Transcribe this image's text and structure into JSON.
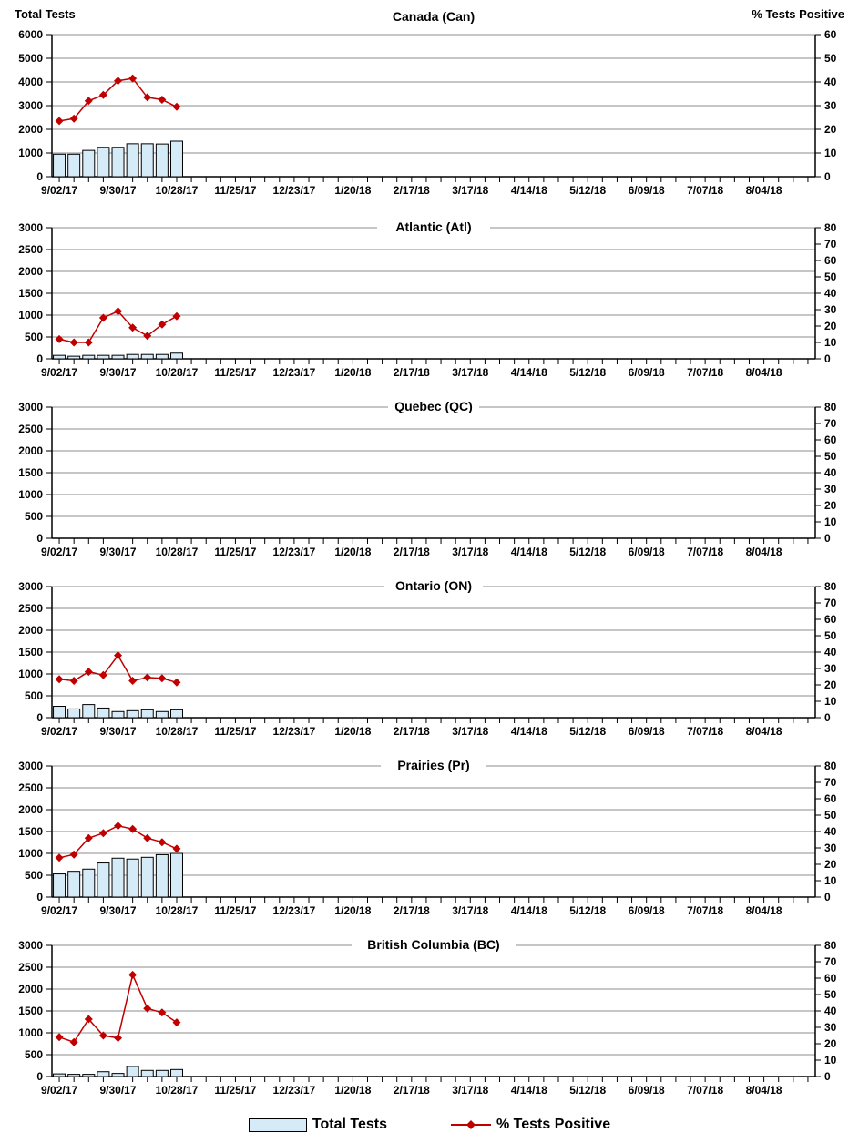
{
  "page": {
    "left_axis_title": "Total Tests",
    "right_axis_title": "% Tests Positive",
    "legend": {
      "bar_label": "Total Tests",
      "line_label": "% Tests Positive"
    },
    "colors": {
      "bar_fill": "#D6EBF8",
      "bar_border": "#000000",
      "line": "#C00000",
      "grid": "#8C8C8C",
      "axis": "#000000",
      "text": "#000000"
    }
  },
  "x_axis": {
    "tick_labels": [
      "9/02/17",
      "9/30/17",
      "10/28/17",
      "11/25/17",
      "12/23/17",
      "1/20/18",
      "2/17/18",
      "3/17/18",
      "4/14/18",
      "5/12/18",
      "6/09/18",
      "7/07/18",
      "8/04/18"
    ],
    "weeks_total": 52,
    "label_every": 4,
    "data_week_dates": [
      "9/02/17",
      "9/09/17",
      "9/16/17",
      "9/23/17",
      "9/30/17",
      "10/07/17",
      "10/14/17",
      "10/21/17",
      "10/28/17"
    ]
  },
  "chart_data": [
    {
      "type": "bar+line",
      "title": "Canada (Can)",
      "show_corner_titles": true,
      "left_axis": {
        "label": "Total Tests",
        "min": 0,
        "max": 6000,
        "step": 1000
      },
      "right_axis": {
        "label": "% Tests Positive",
        "min": 0,
        "max": 60,
        "step": 10
      },
      "series": [
        {
          "name": "Total Tests",
          "axis": "left",
          "type": "bar",
          "values": [
            950,
            950,
            1110,
            1240,
            1240,
            1390,
            1390,
            1380,
            1500
          ]
        },
        {
          "name": "% Tests Positive",
          "axis": "right",
          "type": "line",
          "values": [
            23.5,
            24.5,
            32,
            34.5,
            40.5,
            41.5,
            33.5,
            32.5,
            29.5
          ]
        }
      ]
    },
    {
      "type": "bar+line",
      "title": "Atlantic (Atl)",
      "show_corner_titles": false,
      "left_axis": {
        "label": "Total Tests",
        "min": 0,
        "max": 3000,
        "step": 500
      },
      "right_axis": {
        "label": "% Tests Positive",
        "min": 0,
        "max": 80,
        "step": 10
      },
      "series": [
        {
          "name": "Total Tests",
          "axis": "left",
          "type": "bar",
          "values": [
            80,
            60,
            80,
            80,
            80,
            100,
            100,
            100,
            130
          ]
        },
        {
          "name": "% Tests Positive",
          "axis": "right",
          "type": "line",
          "values": [
            12,
            10,
            10,
            25,
            29,
            19,
            14,
            21,
            26
          ]
        }
      ]
    },
    {
      "type": "bar+line",
      "title": "Quebec (QC)",
      "show_corner_titles": false,
      "left_axis": {
        "label": "Total Tests",
        "min": 0,
        "max": 3000,
        "step": 500
      },
      "right_axis": {
        "label": "% Tests Positive",
        "min": 0,
        "max": 80,
        "step": 10
      },
      "series": [
        {
          "name": "Total Tests",
          "axis": "left",
          "type": "bar",
          "values": []
        },
        {
          "name": "% Tests Positive",
          "axis": "right",
          "type": "line",
          "values": []
        }
      ]
    },
    {
      "type": "bar+line",
      "title": "Ontario (ON)",
      "show_corner_titles": false,
      "left_axis": {
        "label": "Total Tests",
        "min": 0,
        "max": 3000,
        "step": 500
      },
      "right_axis": {
        "label": "% Tests Positive",
        "min": 0,
        "max": 80,
        "step": 10
      },
      "series": [
        {
          "name": "Total Tests",
          "axis": "left",
          "type": "bar",
          "values": [
            260,
            200,
            300,
            220,
            140,
            160,
            180,
            140,
            180
          ]
        },
        {
          "name": "% Tests Positive",
          "axis": "right",
          "type": "line",
          "values": [
            23.5,
            22.5,
            28,
            26,
            38,
            22.5,
            24.5,
            24,
            21.5
          ]
        }
      ]
    },
    {
      "type": "bar+line",
      "title": "Prairies (Pr)",
      "show_corner_titles": false,
      "left_axis": {
        "label": "Total Tests",
        "min": 0,
        "max": 3000,
        "step": 500
      },
      "right_axis": {
        "label": "% Tests Positive",
        "min": 0,
        "max": 80,
        "step": 10
      },
      "series": [
        {
          "name": "Total Tests",
          "axis": "left",
          "type": "bar",
          "values": [
            530,
            590,
            640,
            780,
            890,
            870,
            910,
            970,
            1000
          ]
        },
        {
          "name": "% Tests Positive",
          "axis": "right",
          "type": "line",
          "values": [
            24,
            26,
            36,
            39,
            43.5,
            41.5,
            36,
            33.5,
            29.5
          ]
        }
      ]
    },
    {
      "type": "bar+line",
      "title": "British Columbia (BC)",
      "show_corner_titles": false,
      "left_axis": {
        "label": "Total Tests",
        "min": 0,
        "max": 3000,
        "step": 500
      },
      "right_axis": {
        "label": "% Tests Positive",
        "min": 0,
        "max": 80,
        "step": 10
      },
      "series": [
        {
          "name": "Total Tests",
          "axis": "left",
          "type": "bar",
          "values": [
            60,
            50,
            50,
            110,
            70,
            230,
            140,
            140,
            160
          ]
        },
        {
          "name": "% Tests Positive",
          "axis": "right",
          "type": "line",
          "values": [
            24,
            21,
            35,
            25,
            23.5,
            62,
            41.5,
            39,
            33
          ]
        }
      ]
    }
  ]
}
